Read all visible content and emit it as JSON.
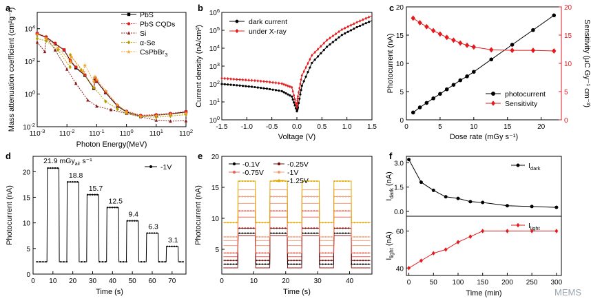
{
  "watermark": "MEMS",
  "colors": {
    "black": "#000000",
    "red": "#e31a1c",
    "darkred": "#8b1a1a",
    "olive": "#b5a000",
    "orange": "#f0a030",
    "gold": "#e0a800",
    "peach": "#f5a07a",
    "salmon": "#e8675a",
    "maroon": "#7a0f0f"
  },
  "chart_data": [
    {
      "panel": "a",
      "type": "line",
      "xscale": "log",
      "yscale": "log",
      "xlabel": "Photon Energy(MeV)",
      "ylabel": "Mass attenuation coefficient (cm²g⁻¹)",
      "xlim": [
        0.001,
        100
      ],
      "ylim": [
        0.01,
        100000
      ],
      "xticks": [
        [
          "1",
          "10",
          "-3"
        ],
        [
          "1",
          "10",
          "-2"
        ],
        [
          "1",
          "10",
          "-1"
        ],
        [
          "1",
          "10",
          "0"
        ],
        [
          "1",
          "10",
          "1"
        ],
        [
          "1",
          "10",
          "2"
        ]
      ],
      "yticks": [
        [
          "10",
          "-2"
        ],
        [
          "10",
          "0"
        ],
        [
          "10",
          "2"
        ],
        [
          "10",
          "4"
        ]
      ],
      "series": [
        {
          "name": "PbS",
          "color": "black",
          "marker": "square",
          "x": [
            0.001,
            0.002,
            0.004,
            0.008,
            0.013,
            0.02,
            0.04,
            0.08,
            0.088,
            0.1,
            0.2,
            0.5,
            1,
            3,
            10,
            30,
            100
          ],
          "y": [
            5000,
            3000,
            1200,
            500,
            110,
            40,
            14,
            2.2,
            9,
            6,
            1.2,
            0.18,
            0.08,
            0.045,
            0.05,
            0.06,
            0.08
          ]
        },
        {
          "name": "PbS CQDs",
          "color": "red",
          "marker": "circle",
          "x": [
            0.001,
            0.002,
            0.004,
            0.008,
            0.013,
            0.02,
            0.04,
            0.08,
            0.088,
            0.1,
            0.2,
            0.5,
            1,
            3,
            10,
            30,
            100
          ],
          "y": [
            5200,
            3200,
            1300,
            520,
            120,
            45,
            15,
            2.4,
            9.5,
            6.4,
            1.3,
            0.2,
            0.09,
            0.05,
            0.055,
            0.065,
            0.085
          ]
        },
        {
          "name": "Si",
          "color": "darkred",
          "marker": "triangle",
          "x": [
            0.001,
            0.0018,
            0.002,
            0.004,
            0.01,
            0.02,
            0.05,
            0.1,
            0.3,
            1,
            3,
            10,
            30,
            100
          ],
          "y": [
            1500,
            400,
            3000,
            500,
            33,
            4.5,
            0.43,
            0.18,
            0.11,
            0.065,
            0.04,
            0.025,
            0.022,
            0.023
          ]
        },
        {
          "name": "α-Se",
          "color": "olive",
          "marker": "diamond",
          "x": [
            0.001,
            0.002,
            0.005,
            0.0127,
            0.013,
            0.03,
            0.08,
            0.2,
            0.5,
            1,
            3,
            10,
            30,
            100
          ],
          "y": [
            2500,
            1800,
            500,
            45,
            250,
            30,
            2.5,
            0.35,
            0.12,
            0.07,
            0.042,
            0.038,
            0.045,
            0.055
          ]
        },
        {
          "name": "CsPbBr3",
          "color": "orange",
          "marker": "star",
          "x": [
            0.001,
            0.002,
            0.005,
            0.0135,
            0.014,
            0.036,
            0.04,
            0.08,
            0.088,
            0.1,
            0.2,
            0.5,
            1,
            3,
            10,
            30,
            100
          ],
          "y": [
            4500,
            2800,
            700,
            90,
            200,
            25,
            60,
            6,
            12,
            8,
            1.6,
            0.22,
            0.085,
            0.046,
            0.05,
            0.058,
            0.07
          ]
        }
      ],
      "legend": [
        "PbS",
        "PbS CQDs",
        "Si",
        "α-Se",
        "CsPbBr",
        "3"
      ]
    },
    {
      "panel": "b",
      "type": "line",
      "yscale": "log",
      "xlabel": "Voltage (V)",
      "ylabel": "Current density (nA/cm²)",
      "xlim": [
        -1.5,
        1.5
      ],
      "ylim": [
        1,
        1000000
      ],
      "xticks": [
        "-1.5",
        "-1.0",
        "-0.5",
        "0.0",
        "0.5",
        "1.0",
        "1.5"
      ],
      "yticks": [
        [
          "10",
          "0"
        ],
        [
          "10",
          "1"
        ],
        [
          "10",
          "2"
        ],
        [
          "10",
          "3"
        ],
        [
          "10",
          "4"
        ],
        [
          "10",
          "5"
        ],
        [
          "10",
          "6"
        ]
      ],
      "series": [
        {
          "name": "dark current",
          "color": "black",
          "x": [
            -1.5,
            -1.2,
            -0.9,
            -0.6,
            -0.3,
            -0.1,
            0,
            0.02,
            0.1,
            0.3,
            0.6,
            0.9,
            1.2,
            1.5
          ],
          "y": [
            100,
            85,
            70,
            55,
            40,
            20,
            3,
            5,
            80,
            1500,
            12000,
            55000,
            150000,
            350000
          ]
        },
        {
          "name": "under X-ray",
          "color": "red",
          "x": [
            -1.5,
            -1.2,
            -0.9,
            -0.6,
            -0.3,
            -0.1,
            0,
            0.02,
            0.1,
            0.3,
            0.6,
            0.9,
            1.2,
            1.5
          ],
          "y": [
            210,
            180,
            160,
            135,
            105,
            65,
            5,
            20,
            300,
            4000,
            28000,
            110000,
            280000,
            650000
          ]
        }
      ]
    },
    {
      "panel": "c",
      "type": "line",
      "xlabel": "Dose rate (mGy s⁻¹)",
      "ylabel": "Photocurrent (nA)",
      "y2label": "Sensitivity (μC Gy⁻¹ cm⁻³)",
      "xlim": [
        0,
        23
      ],
      "ylim": [
        0,
        20
      ],
      "y2lim": [
        0,
        20
      ],
      "xticks": [
        "0",
        "5",
        "10",
        "15",
        "20"
      ],
      "yticks": [
        "0",
        "5",
        "10",
        "15",
        "20"
      ],
      "y2ticks": [
        "0",
        "5",
        "10",
        "15",
        "20"
      ],
      "series": [
        {
          "name": "photocurrent",
          "color": "black",
          "axis": "left",
          "x": [
            1,
            2,
            3,
            4,
            5,
            6,
            7,
            8,
            9,
            10,
            12.6,
            15.7,
            18.8,
            21.9
          ],
          "y": [
            1.3,
            2.2,
            3.0,
            3.8,
            4.6,
            5.4,
            6.2,
            7.0,
            7.7,
            8.5,
            10.7,
            13.3,
            15.9,
            18.5
          ]
        },
        {
          "name": "Sensitivity",
          "color": "red",
          "axis": "right",
          "x": [
            1,
            2,
            3,
            4,
            5,
            6,
            7,
            8,
            9,
            10,
            12.6,
            15.7,
            18.8,
            21.9
          ],
          "y": [
            18,
            17.2,
            16.5,
            15.8,
            15.2,
            14.6,
            14.1,
            13.6,
            13.2,
            12.9,
            12.4,
            12.3,
            12.3,
            12.2
          ]
        }
      ]
    },
    {
      "panel": "d",
      "type": "line",
      "xlabel": "Time (s)",
      "ylabel": "Photocurrent (nA)",
      "xlim": [
        0,
        77
      ],
      "ylim": [
        0,
        23
      ],
      "xticks": [
        "0",
        "10",
        "20",
        "30",
        "40",
        "50",
        "60",
        "70"
      ],
      "yticks": [
        "0",
        "5",
        "10",
        "15",
        "20"
      ],
      "legend": "-1V",
      "annotation": [
        "21.9 mGy",
        "air",
        " s⁻¹"
      ],
      "pulses": [
        {
          "t0": 7,
          "t1": 13,
          "on": 20.7,
          "label": "21.9"
        },
        {
          "t0": 17,
          "t1": 23,
          "on": 18.0,
          "label": "18.8"
        },
        {
          "t0": 27,
          "t1": 33,
          "on": 15.5,
          "label": "15.7"
        },
        {
          "t0": 37,
          "t1": 43,
          "on": 13.0,
          "label": "12.5"
        },
        {
          "t0": 47,
          "t1": 53,
          "on": 10.4,
          "label": "9.4"
        },
        {
          "t0": 57,
          "t1": 63,
          "on": 8.0,
          "label": "6.3"
        },
        {
          "t0": 67,
          "t1": 73,
          "on": 5.4,
          "label": "3.1"
        }
      ],
      "baseline": 2.4
    },
    {
      "panel": "e",
      "type": "line",
      "xlabel": "Time (s)",
      "ylabel": "Photocurrent (nA)",
      "xlim": [
        0,
        47
      ],
      "ylim": [
        1,
        20
      ],
      "xticks": [
        "0",
        "10",
        "20",
        "30",
        "40"
      ],
      "yticks": [
        "5",
        "10",
        "15",
        "20"
      ],
      "on_intervals": [
        [
          5,
          10.5
        ],
        [
          15,
          20.5
        ],
        [
          25,
          30.5
        ],
        [
          35,
          40.5
        ]
      ],
      "series": [
        {
          "name": "-0.1V",
          "color": "black",
          "off": 2.6,
          "on": 7.6
        },
        {
          "name": "-0.25V",
          "color": "maroon",
          "off": 3.2,
          "on": 8.4
        },
        {
          "name": "-0.75V",
          "color": "salmon",
          "off": 4.4,
          "on": 11.2
        },
        {
          "name": "-1V",
          "color": "peach",
          "off": 7.0,
          "on": 13.5
        },
        {
          "name": "-1.25V",
          "color": "gold",
          "off": 9.3,
          "on": 16.0
        }
      ]
    },
    {
      "panel": "f",
      "type": "line",
      "xlabel": "Time (min)",
      "xticks": [
        "0",
        "50",
        "100",
        "150",
        "200",
        "250",
        "300"
      ],
      "xlim": [
        -5,
        310
      ],
      "top": {
        "ylabel": [
          "I",
          "dark",
          " (nA)"
        ],
        "ylim": [
          -0.3,
          3.4
        ],
        "yticks": [
          "0.0",
          "1.5",
          "3.0"
        ],
        "legend": [
          "I",
          "dark"
        ],
        "x": [
          0,
          25,
          50,
          75,
          100,
          125,
          150,
          200,
          250,
          300
        ],
        "y": [
          3.2,
          1.8,
          1.3,
          0.9,
          0.8,
          0.6,
          0.55,
          0.35,
          0.3,
          0.25
        ],
        "color": "black"
      },
      "bottom": {
        "ylabel": [
          "I",
          "light",
          " (nA)"
        ],
        "ylim": [
          36,
          68
        ],
        "yticks": [
          "40",
          "60"
        ],
        "legend": [
          "I",
          "light"
        ],
        "x": [
          0,
          25,
          50,
          75,
          100,
          125,
          150,
          200,
          250,
          300
        ],
        "y": [
          40,
          44,
          48,
          50,
          54,
          57,
          60,
          60,
          60,
          60
        ],
        "color": "red"
      }
    }
  ]
}
